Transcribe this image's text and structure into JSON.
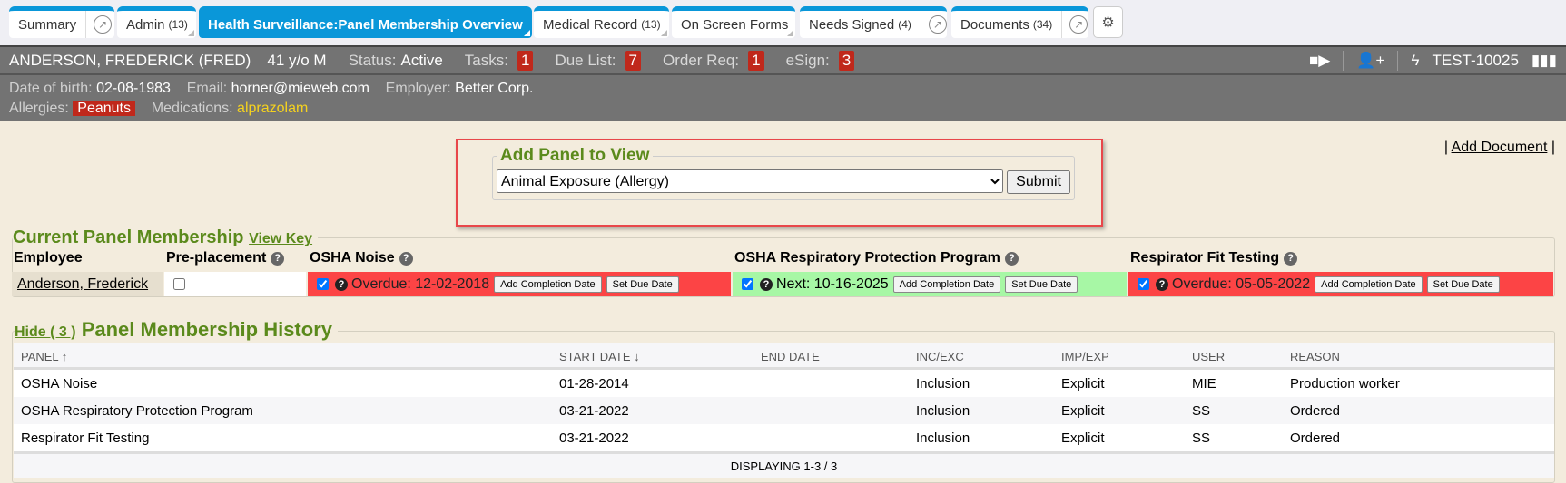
{
  "tabs": [
    {
      "label": "Summary",
      "count": "",
      "ext": true
    },
    {
      "label": "Admin",
      "count": "(13)",
      "ext": false
    },
    {
      "label": "Health Surveillance:Panel Membership Overview",
      "count": "",
      "ext": false,
      "active": true
    },
    {
      "label": "Medical Record",
      "count": "(13)",
      "ext": false
    },
    {
      "label": "On Screen Forms",
      "count": "",
      "ext": false
    },
    {
      "label": "Needs Signed",
      "count": "(4)",
      "ext": true
    },
    {
      "label": "Documents",
      "count": "(34)",
      "ext": true
    }
  ],
  "patient": {
    "name": "ANDERSON, FREDERICK (FRED)",
    "age_sex": "41 y/o M",
    "status_label": "Status:",
    "status": "Active",
    "tasks_label": "Tasks:",
    "tasks": "1",
    "due_label": "Due List:",
    "due": "7",
    "order_label": "Order Req:",
    "order": "1",
    "esign_label": "eSign:",
    "esign": "3",
    "id": "TEST-10025",
    "dob_label": "Date of birth:",
    "dob": "02-08-1983",
    "email_label": "Email:",
    "email": "horner@mieweb.com",
    "employer_label": "Employer:",
    "employer": "Better Corp.",
    "allergies_label": "Allergies:",
    "allergies": "Peanuts",
    "meds_label": "Medications:",
    "meds": "alprazolam"
  },
  "add_document": "Add Document",
  "add_panel": {
    "legend": "Add Panel to View",
    "selected": "Animal Exposure (Allergy)",
    "submit": "Submit"
  },
  "current": {
    "title": "Current Panel Membership",
    "view_key": "View Key",
    "headers": [
      "Employee",
      "Pre-placement",
      "OSHA Noise",
      "OSHA Respiratory Protection Program",
      "Respirator Fit Testing"
    ],
    "employee": "Anderson, Frederick",
    "panels": [
      {
        "status": "Overdue: 12-02-2018",
        "state": "overdue"
      },
      {
        "status": "Next: 10-16-2025",
        "state": "ok"
      },
      {
        "status": "Overdue: 05-05-2022",
        "state": "overdue"
      }
    ],
    "add_completion": "Add Completion Date",
    "set_due": "Set Due Date",
    "colors": {
      "overdue": "#fc4445",
      "ok": "#a7f7a5"
    }
  },
  "history": {
    "hide": "Hide ( 3 )",
    "title": "Panel Membership History",
    "headers": [
      "PANEL",
      "START DATE",
      "END DATE",
      "INC/EXC",
      "IMP/EXP",
      "USER",
      "REASON"
    ],
    "rows": [
      [
        "OSHA Noise",
        "01-28-2014",
        "",
        "Inclusion",
        "Explicit",
        "MIE",
        "Production worker"
      ],
      [
        "OSHA Respiratory Protection Program",
        "03-21-2022",
        "",
        "Inclusion",
        "Explicit",
        "SS",
        "Ordered"
      ],
      [
        "Respirator Fit Testing",
        "03-21-2022",
        "",
        "Inclusion",
        "Explicit",
        "SS",
        "Ordered"
      ]
    ],
    "footer": "DISPLAYING 1-3 / 3"
  }
}
